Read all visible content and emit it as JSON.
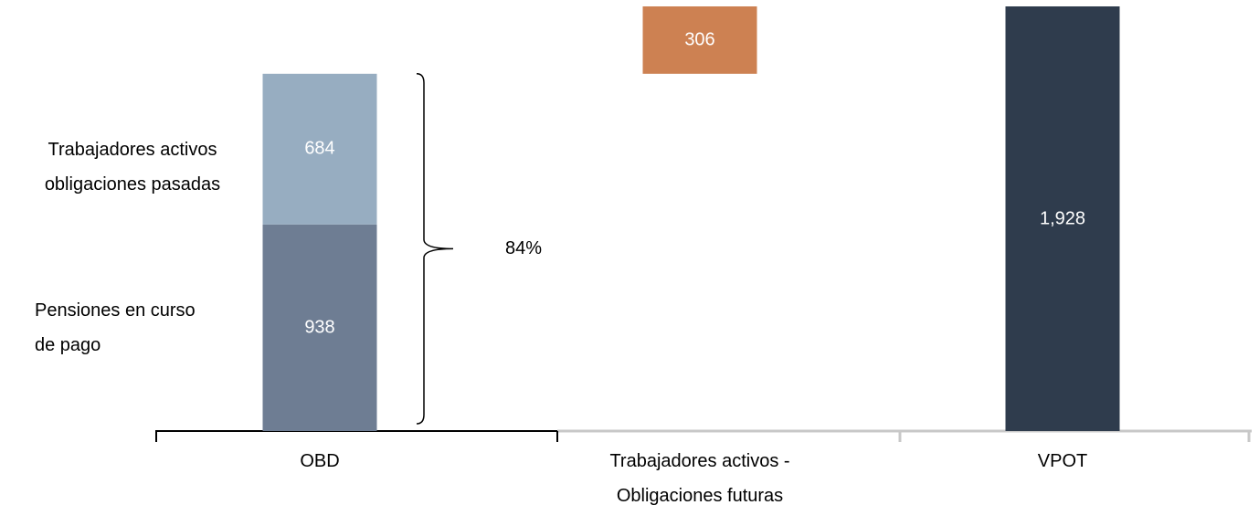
{
  "chart_data": {
    "type": "waterfall",
    "categories": [
      "OBD",
      "Trabajadores activos -\nObligaciones futuras",
      "VPOT"
    ],
    "series": [
      {
        "name": "Pensiones en curso\nde pago",
        "color": "#6e7d93",
        "values": [
          938,
          null,
          null
        ]
      },
      {
        "name": "Trabajadores activos\nobligaciones pasadas",
        "color": "#97adc1",
        "values": [
          684,
          null,
          null
        ]
      },
      {
        "color": "#cd8152",
        "values": [
          null,
          306,
          null
        ]
      },
      {
        "color": "#2f3c4d",
        "values": [
          null,
          null,
          1928
        ]
      }
    ],
    "value_labels": [
      [
        "938",
        null,
        null
      ],
      [
        "684",
        null,
        null
      ],
      [
        null,
        "306",
        null
      ],
      [
        null,
        null,
        "1,928"
      ]
    ],
    "annotation": "84%"
  }
}
